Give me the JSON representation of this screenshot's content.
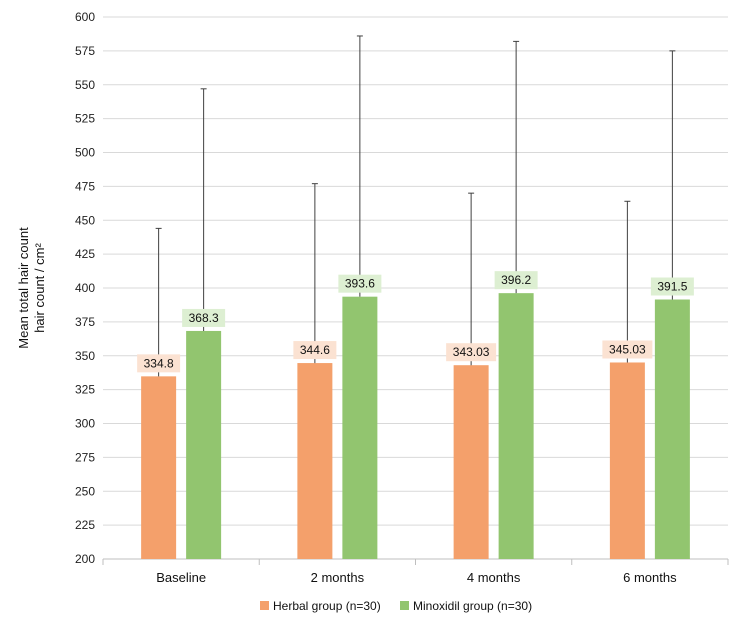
{
  "chart_data": {
    "type": "bar",
    "ylabel_line1": "Mean total hair count",
    "ylabel_line2": "hair count / cm²",
    "xlabel": "",
    "categories": [
      "Baseline",
      "2 months",
      "4 months",
      "6 months"
    ],
    "ylim": [
      200,
      600
    ],
    "yticks": [
      200,
      225,
      250,
      275,
      300,
      325,
      350,
      375,
      400,
      425,
      450,
      475,
      500,
      525,
      550,
      575,
      600
    ],
    "grid": true,
    "legend_position": "bottom",
    "series": [
      {
        "name": "Herbal group (n=30)",
        "color": "#F4A06B",
        "label_bg": "#FBE2D2",
        "values": [
          334.8,
          344.6,
          343.03,
          345.03
        ],
        "labels": [
          "334.8",
          "344.6",
          "343.03",
          "345.03"
        ],
        "error_upper": [
          444,
          477,
          470,
          464
        ]
      },
      {
        "name": "Minoxidil group (n=30)",
        "color": "#92C56F",
        "label_bg": "#DDEFD2",
        "values": [
          368.3,
          393.6,
          396.2,
          391.5
        ],
        "labels": [
          "368.3",
          "393.6",
          "396.2",
          "391.5"
        ],
        "error_upper": [
          547,
          586,
          582,
          575
        ]
      }
    ]
  }
}
